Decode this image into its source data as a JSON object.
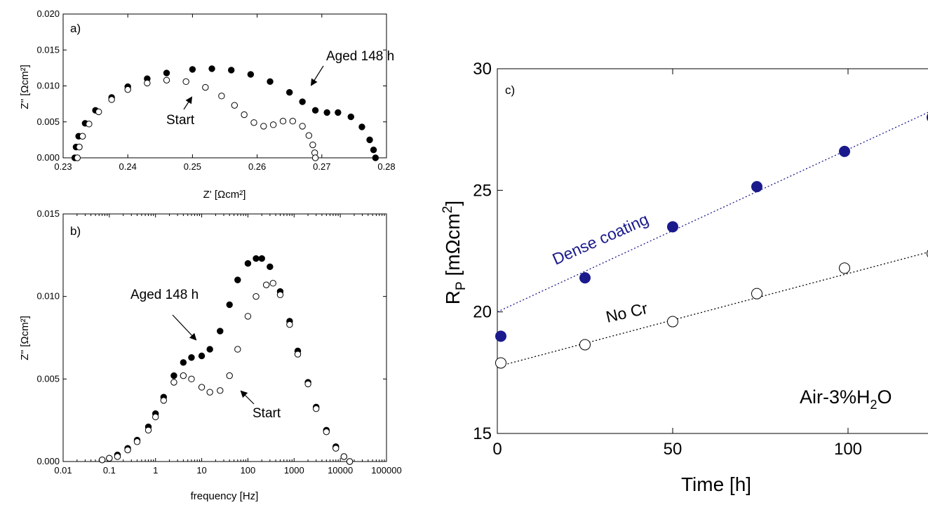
{
  "chart_data": [
    {
      "panel": "a)",
      "type": "scatter",
      "xlabel": "Z' [Ωcm²]",
      "ylabel": "Z'' [Ωcm²]",
      "xlim": [
        0.23,
        0.28
      ],
      "ylim": [
        0.0,
        0.02
      ],
      "xticks": [
        "0.23",
        "0.24",
        "0.25",
        "0.26",
        "0.27",
        "0.28"
      ],
      "yticks": [
        "0.000",
        "0.005",
        "0.010",
        "0.015",
        "0.020"
      ],
      "series": [
        {
          "name": "Aged 148 h",
          "marker": "filled",
          "x": [
            0.2318,
            0.232,
            0.2324,
            0.2334,
            0.235,
            0.2375,
            0.24,
            0.243,
            0.246,
            0.25,
            0.253,
            0.256,
            0.259,
            0.262,
            0.265,
            0.267,
            0.269,
            0.2708,
            0.2725,
            0.2745,
            0.2762,
            0.2774,
            0.278,
            0.2783
          ],
          "y": [
            0.0,
            0.0015,
            0.003,
            0.0048,
            0.0066,
            0.0084,
            0.0099,
            0.011,
            0.0118,
            0.0123,
            0.0124,
            0.0122,
            0.0116,
            0.0106,
            0.0091,
            0.0078,
            0.0066,
            0.0063,
            0.0063,
            0.0057,
            0.0043,
            0.0025,
            0.0011,
            0.0
          ]
        },
        {
          "name": "Start",
          "marker": "open",
          "x": [
            0.2322,
            0.2325,
            0.233,
            0.234,
            0.2355,
            0.2375,
            0.24,
            0.243,
            0.246,
            0.249,
            0.252,
            0.2545,
            0.2565,
            0.258,
            0.2595,
            0.261,
            0.2625,
            0.264,
            0.2655,
            0.267,
            0.268,
            0.2686,
            0.2689,
            0.269
          ],
          "y": [
            0.0,
            0.0015,
            0.003,
            0.0047,
            0.0064,
            0.0081,
            0.0095,
            0.0104,
            0.0108,
            0.0106,
            0.0098,
            0.0086,
            0.0073,
            0.006,
            0.0049,
            0.0044,
            0.0046,
            0.0051,
            0.0051,
            0.0044,
            0.0031,
            0.0018,
            0.0007,
            0.0
          ]
        }
      ],
      "annotations": [
        "Aged 148 h",
        "Start"
      ]
    },
    {
      "panel": "b)",
      "type": "scatter",
      "xlabel": "frequency [Hz]",
      "ylabel": "Z'' [Ωcm²]",
      "xscale": "log",
      "xlim": [
        0.01,
        100000
      ],
      "ylim": [
        0.0,
        0.015
      ],
      "xticks": [
        "0.01",
        "0.1",
        "1",
        "10",
        "100",
        "1000",
        "10000",
        "100000"
      ],
      "yticks": [
        "0.000",
        "0.005",
        "0.010",
        "0.015"
      ],
      "series": [
        {
          "name": "Aged 148 h",
          "marker": "filled",
          "x": [
            0.07,
            0.1,
            0.15,
            0.25,
            0.4,
            0.7,
            1,
            1.5,
            2.5,
            4,
            6,
            10,
            15,
            25,
            40,
            60,
            100,
            150,
            200,
            300,
            500,
            800,
            1200,
            2000,
            3000,
            5000,
            8000,
            12000,
            16000
          ],
          "y": [
            0.0001,
            0.0002,
            0.0004,
            0.0008,
            0.0013,
            0.0021,
            0.0029,
            0.0039,
            0.0052,
            0.006,
            0.0063,
            0.0064,
            0.0068,
            0.0079,
            0.0095,
            0.011,
            0.012,
            0.0123,
            0.0123,
            0.0118,
            0.0103,
            0.0085,
            0.0067,
            0.0048,
            0.0033,
            0.0019,
            0.0009,
            0.0003,
            0.0
          ]
        },
        {
          "name": "Start",
          "marker": "open",
          "x": [
            0.07,
            0.1,
            0.15,
            0.25,
            0.4,
            0.7,
            1,
            1.5,
            2.5,
            4,
            6,
            10,
            15,
            25,
            40,
            60,
            100,
            150,
            250,
            350,
            500,
            800,
            1200,
            2000,
            3000,
            5000,
            8000,
            12000,
            16000
          ],
          "y": [
            0.0001,
            0.0002,
            0.0003,
            0.0007,
            0.0012,
            0.0019,
            0.0027,
            0.0037,
            0.0048,
            0.0052,
            0.005,
            0.0045,
            0.0042,
            0.0043,
            0.0052,
            0.0068,
            0.0088,
            0.01,
            0.0107,
            0.0108,
            0.0101,
            0.0083,
            0.0065,
            0.0047,
            0.0032,
            0.0018,
            0.0008,
            0.0003,
            0.0
          ]
        }
      ],
      "annotations": [
        "Aged 148 h",
        "Start"
      ]
    },
    {
      "panel": "c)",
      "type": "scatter",
      "xlabel": "Time [h]",
      "ylabel": "RP [mΩcm²]",
      "xlim": [
        0,
        128
      ],
      "ylim": [
        15,
        30
      ],
      "xticks": [
        "0",
        "50",
        "100"
      ],
      "yticks": [
        "15",
        "20",
        "25",
        "30"
      ],
      "series": [
        {
          "name": "Dense coating",
          "marker": "filled",
          "color": "#1a1a8c",
          "x": [
            1,
            25,
            50,
            74,
            99,
            124
          ],
          "y": [
            19.0,
            21.4,
            23.5,
            25.15,
            26.6,
            28.0
          ],
          "fit": [
            [
              0,
              20.0
            ],
            [
              128,
              28.55
            ]
          ]
        },
        {
          "name": "No Cr",
          "marker": "open",
          "color": "#000000",
          "x": [
            1,
            25,
            50,
            74,
            99,
            124
          ],
          "y": [
            17.9,
            18.65,
            19.6,
            20.75,
            21.8,
            22.4
          ],
          "fit": [
            [
              0,
              17.75
            ],
            [
              128,
              22.65
            ]
          ]
        }
      ],
      "annotations": [
        "Dense coating",
        "No Cr",
        "Air-3%H2O"
      ]
    }
  ]
}
